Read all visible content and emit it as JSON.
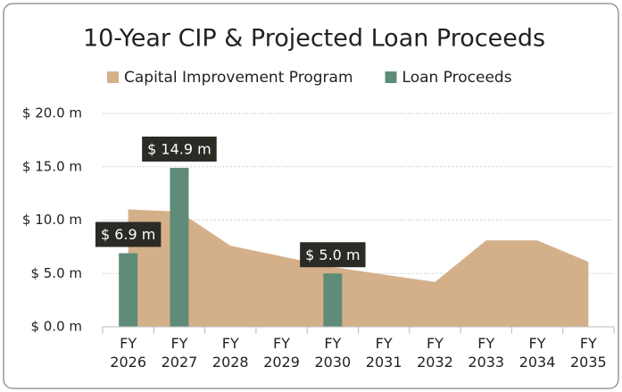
{
  "chart_data": {
    "type": "bar",
    "title": "10-Year CIP & Projected Loan Proceeds",
    "categories": [
      "FY 2026",
      "FY 2027",
      "FY 2028",
      "FY 2029",
      "FY 2030",
      "FY 2031",
      "FY 2032",
      "FY 2033",
      "FY 2034",
      "FY 2035"
    ],
    "series": [
      {
        "name": "Capital Improvement Program",
        "type": "area",
        "color": "#d4b08a",
        "values": [
          11.0,
          10.8,
          7.6,
          6.6,
          5.6,
          4.9,
          4.2,
          8.1,
          8.1,
          6.1
        ]
      },
      {
        "name": "Loan Proceeds",
        "type": "bar",
        "color": "#5e8c78",
        "values": [
          6.9,
          14.9,
          null,
          null,
          5.0,
          null,
          null,
          null,
          null,
          null
        ],
        "value_labels": [
          "$ 6.9 m",
          "$ 14.9 m",
          null,
          null,
          "$ 5.0 m",
          null,
          null,
          null,
          null,
          null
        ]
      }
    ],
    "ylim": [
      0,
      20
    ],
    "yticks": [
      {
        "value": 0,
        "label": "$ 0.0 m"
      },
      {
        "value": 5,
        "label": "$ 5.0 m"
      },
      {
        "value": 10,
        "label": "$ 10.0 m"
      },
      {
        "value": 15,
        "label": "$ 15.0 m"
      },
      {
        "value": 20,
        "label": "$ 20.0 m"
      }
    ],
    "grid": true,
    "legend": "top"
  }
}
